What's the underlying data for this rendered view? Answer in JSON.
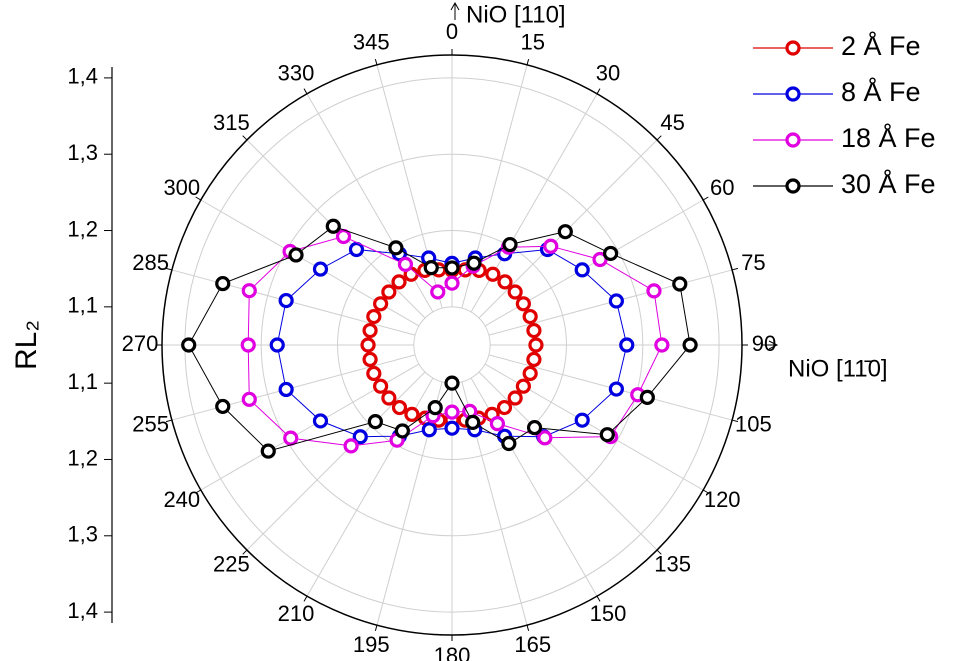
{
  "chart_data": {
    "type": "polar",
    "y_label": "RL₂",
    "annotations": [
      "NiO [110]",
      "NiO [11̄0]"
    ],
    "rlim": [
      1.05,
      1.43
    ],
    "rticks": [
      {
        "value": 1.1,
        "label": "1,1"
      },
      {
        "value": 1.2,
        "label": "1,2"
      },
      {
        "value": 1.3,
        "label": "1,3"
      },
      {
        "value": 1.4,
        "label": "1,4"
      }
    ],
    "thetaticks": [
      0,
      15,
      30,
      45,
      60,
      75,
      90,
      105,
      120,
      135,
      150,
      165,
      180,
      195,
      210,
      225,
      240,
      255,
      270,
      285,
      300,
      315,
      330,
      345
    ],
    "grid": true,
    "legend": "upper right",
    "series": [
      {
        "name": "2 Å Fe",
        "color": "#e00000",
        "theta": [
          0,
          10,
          20,
          30,
          40,
          50,
          60,
          70,
          80,
          90,
          100,
          110,
          120,
          130,
          140,
          150,
          160,
          170,
          180,
          190,
          200,
          210,
          220,
          230,
          240,
          250,
          260,
          270,
          280,
          290,
          300,
          310,
          320,
          330,
          340,
          350
        ],
        "values": [
          1.148,
          1.15,
          1.154,
          1.157,
          1.158,
          1.158,
          1.158,
          1.159,
          1.159,
          1.16,
          1.159,
          1.159,
          1.158,
          1.158,
          1.157,
          1.155,
          1.152,
          1.15,
          1.148,
          1.15,
          1.152,
          1.155,
          1.157,
          1.158,
          1.158,
          1.159,
          1.159,
          1.16,
          1.159,
          1.159,
          1.158,
          1.158,
          1.158,
          1.157,
          1.154,
          1.15
        ]
      },
      {
        "name": "8 Å Fe",
        "color": "#0000e0",
        "theta": [
          0,
          15,
          30,
          45,
          60,
          75,
          90,
          105,
          120,
          135,
          150,
          165,
          180,
          195,
          210,
          225,
          240,
          255,
          270,
          285,
          300,
          315,
          330,
          345
        ],
        "values": [
          1.157,
          1.168,
          1.188,
          1.227,
          1.247,
          1.273,
          1.279,
          1.273,
          1.247,
          1.22,
          1.188,
          1.165,
          1.159,
          1.165,
          1.188,
          1.22,
          1.249,
          1.275,
          1.279,
          1.275,
          1.249,
          1.227,
          1.188,
          1.168
        ]
      },
      {
        "name": "18 Å Fe",
        "color": "#e000e0",
        "theta": [
          0,
          15,
          30,
          45,
          60,
          75,
          90,
          105,
          120,
          135,
          150,
          165,
          180,
          195,
          210,
          225,
          240,
          255,
          270,
          285,
          300,
          315,
          330,
          345
        ],
        "values": [
          1.131,
          1.157,
          1.198,
          1.233,
          1.274,
          1.324,
          1.325,
          1.302,
          1.29,
          1.222,
          1.169,
          1.14,
          1.138,
          1.146,
          1.194,
          1.237,
          1.294,
          1.325,
          1.317,
          1.325,
          1.295,
          1.251,
          1.172,
          1.122
        ]
      },
      {
        "name": "30 Å Fe",
        "color": "#000000",
        "theta": [
          0,
          15,
          30,
          45,
          60,
          75,
          90,
          105,
          120,
          135,
          150,
          165,
          180,
          195,
          210,
          225,
          240,
          255,
          270,
          285,
          300,
          315,
          330,
          345
        ],
        "values": [
          1.151,
          1.161,
          1.202,
          1.26,
          1.29,
          1.359,
          1.362,
          1.315,
          1.285,
          1.203,
          1.199,
          1.155,
          1.1,
          1.135,
          1.18,
          1.192,
          1.328,
          1.361,
          1.395,
          1.361,
          1.286,
          1.27,
          1.197,
          1.155
        ]
      }
    ]
  }
}
